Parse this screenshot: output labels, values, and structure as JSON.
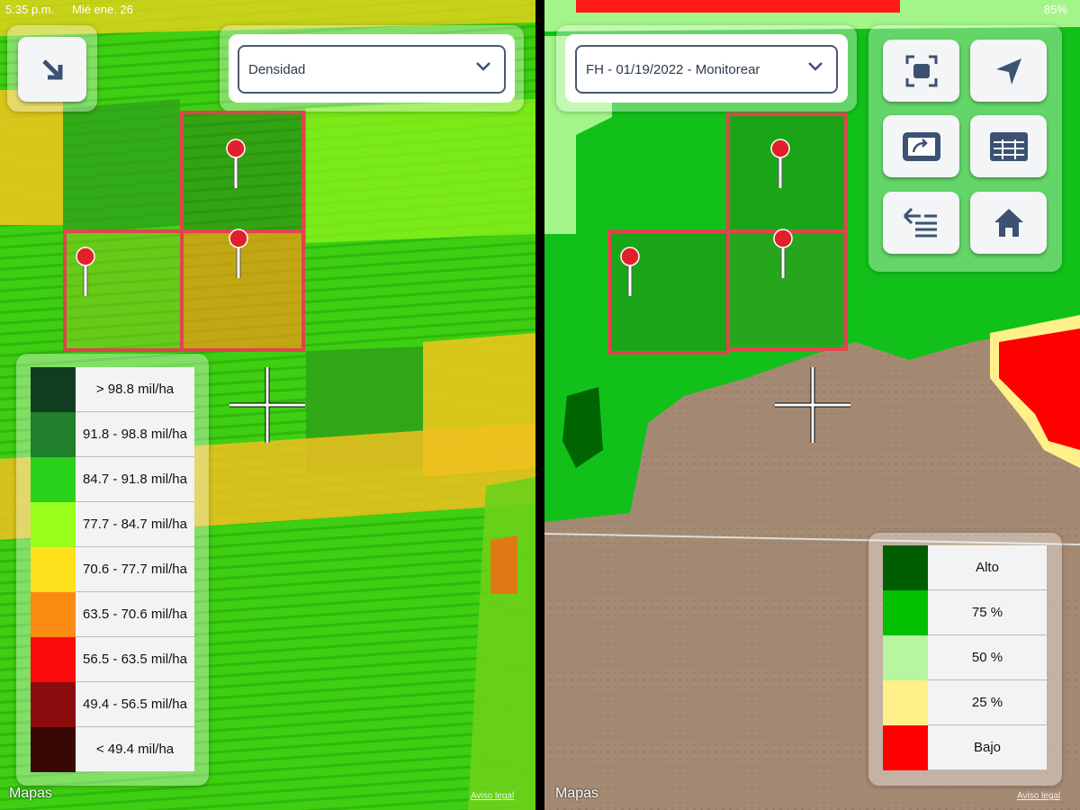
{
  "status_bar": {
    "time": "5:35 p.m.",
    "date": "Mié ene. 26",
    "battery": "85%"
  },
  "left_panel": {
    "dropdown": "Densidad",
    "legend": [
      {
        "label": "> 98.8 mil/ha",
        "color": "#123c20"
      },
      {
        "label": "91.8 - 98.8 mil/ha",
        "color": "#1f7f2a"
      },
      {
        "label": "84.7 - 91.8 mil/ha",
        "color": "#2ad11a"
      },
      {
        "label": "77.7 - 84.7 mil/ha",
        "color": "#9aff1a"
      },
      {
        "label": "70.6 - 77.7 mil/ha",
        "color": "#ffe01c"
      },
      {
        "label": "63.5 - 70.6 mil/ha",
        "color": "#fb8b12"
      },
      {
        "label": "56.5 - 63.5 mil/ha",
        "color": "#fa0a0a"
      },
      {
        "label": "49.4 - 56.5 mil/ha",
        "color": "#8b0c0c"
      },
      {
        "label": "< 49.4 mil/ha",
        "color": "#3a0707"
      }
    ],
    "map_credit": "Mapas",
    "legal": "Aviso legal"
  },
  "right_panel": {
    "dropdown": "FH - 01/19/2022 - Monitorear",
    "legend": [
      {
        "label": "Alto",
        "color": "#005e00"
      },
      {
        "label": "75 %",
        "color": "#00c000"
      },
      {
        "label": "50 %",
        "color": "#b8f5a0"
      },
      {
        "label": "25 %",
        "color": "#fff08a"
      },
      {
        "label": "Bajo",
        "color": "#ff0000"
      }
    ],
    "map_credit": "Mapas",
    "legal": "Aviso legal"
  }
}
